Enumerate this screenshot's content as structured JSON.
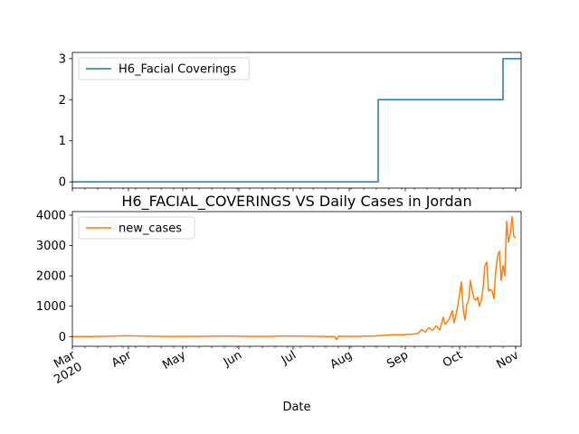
{
  "chart_data": [
    {
      "type": "line",
      "title": "",
      "xlabel": "",
      "ylabel": "",
      "ylim": [
        -0.15,
        3.15
      ],
      "yticks": [
        0,
        1,
        2,
        3
      ],
      "legend_position": "top-left",
      "series": [
        {
          "name": "H6_Facial Coverings",
          "color": "#1f77b4",
          "points": [
            [
              "2020-03-01",
              0
            ],
            [
              "2020-08-16",
              0
            ],
            [
              "2020-08-17",
              2
            ],
            [
              "2020-10-24",
              2
            ],
            [
              "2020-10-25",
              3
            ],
            [
              "2020-11-04",
              3
            ]
          ]
        }
      ]
    },
    {
      "type": "line",
      "title": "H6_FACIAL_COVERINGS VS Daily Cases in Jordan",
      "xlabel": "Date",
      "ylabel": "",
      "ylim": [
        -320,
        4120
      ],
      "yticks": [
        0,
        1000,
        2000,
        3000,
        4000
      ],
      "legend_position": "top-left",
      "x_tick_labels": [
        "Mar\n2020",
        "Apr",
        "May",
        "Jun",
        "Jul",
        "Aug",
        "Sep",
        "Oct",
        "Nov"
      ],
      "series": [
        {
          "name": "new_cases",
          "color": "#ff7f0e",
          "points": [
            [
              "2020-03-01",
              0
            ],
            [
              "2020-03-15",
              5
            ],
            [
              "2020-03-25",
              20
            ],
            [
              "2020-04-01",
              25
            ],
            [
              "2020-04-10",
              15
            ],
            [
              "2020-04-20",
              5
            ],
            [
              "2020-05-01",
              5
            ],
            [
              "2020-05-15",
              10
            ],
            [
              "2020-05-25",
              15
            ],
            [
              "2020-06-01",
              10
            ],
            [
              "2020-06-15",
              5
            ],
            [
              "2020-06-25",
              20
            ],
            [
              "2020-07-01",
              15
            ],
            [
              "2020-07-10",
              10
            ],
            [
              "2020-07-20",
              5
            ],
            [
              "2020-07-24",
              0
            ],
            [
              "2020-07-25",
              -100
            ],
            [
              "2020-07-26",
              10
            ],
            [
              "2020-08-01",
              5
            ],
            [
              "2020-08-10",
              15
            ],
            [
              "2020-08-15",
              20
            ],
            [
              "2020-08-20",
              40
            ],
            [
              "2020-08-25",
              60
            ],
            [
              "2020-08-30",
              60
            ],
            [
              "2020-09-05",
              80
            ],
            [
              "2020-09-08",
              100
            ],
            [
              "2020-09-10",
              230
            ],
            [
              "2020-09-12",
              150
            ],
            [
              "2020-09-14",
              300
            ],
            [
              "2020-09-16",
              200
            ],
            [
              "2020-09-18",
              350
            ],
            [
              "2020-09-20",
              220
            ],
            [
              "2020-09-22",
              640
            ],
            [
              "2020-09-23",
              400
            ],
            [
              "2020-09-25",
              550
            ],
            [
              "2020-09-27",
              850
            ],
            [
              "2020-09-28",
              450
            ],
            [
              "2020-09-30",
              1000
            ],
            [
              "2020-10-02",
              1800
            ],
            [
              "2020-10-03",
              900
            ],
            [
              "2020-10-04",
              550
            ],
            [
              "2020-10-05",
              1050
            ],
            [
              "2020-10-06",
              1200
            ],
            [
              "2020-10-07",
              1850
            ],
            [
              "2020-10-08",
              1500
            ],
            [
              "2020-10-09",
              1250
            ],
            [
              "2020-10-10",
              1200
            ],
            [
              "2020-10-11",
              1300
            ],
            [
              "2020-10-12",
              1000
            ],
            [
              "2020-10-13",
              1200
            ],
            [
              "2020-10-14",
              1600
            ],
            [
              "2020-10-15",
              2350
            ],
            [
              "2020-10-16",
              2450
            ],
            [
              "2020-10-17",
              1500
            ],
            [
              "2020-10-18",
              1550
            ],
            [
              "2020-10-19",
              1500
            ],
            [
              "2020-10-20",
              1250
            ],
            [
              "2020-10-21",
              2200
            ],
            [
              "2020-10-22",
              2650
            ],
            [
              "2020-10-23",
              2820
            ],
            [
              "2020-10-24",
              1850
            ],
            [
              "2020-10-25",
              2350
            ],
            [
              "2020-10-26",
              2000
            ],
            [
              "2020-10-27",
              3800
            ],
            [
              "2020-10-28",
              3100
            ],
            [
              "2020-10-29",
              3400
            ],
            [
              "2020-10-30",
              3950
            ],
            [
              "2020-10-31",
              3300
            ],
            [
              "2020-11-01",
              3250
            ]
          ]
        }
      ]
    }
  ]
}
